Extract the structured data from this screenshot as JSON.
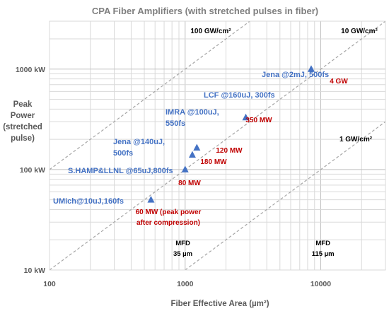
{
  "chart_data": {
    "type": "scatter",
    "title": "CPA Fiber Amplifiers (with stretched pulses in fiber)",
    "xlabel": "Fiber Effective Area (µm²)",
    "ylabel_lines": [
      "Peak",
      "Power",
      "(stretched",
      "pulse)"
    ],
    "x_scale": "log",
    "y_scale": "log",
    "xlim": [
      100,
      30000
    ],
    "ylim": [
      10,
      3000
    ],
    "x_ticks": [
      {
        "value": 100,
        "label": "100"
      },
      {
        "value": 1000,
        "label": "1000"
      },
      {
        "value": 10000,
        "label": "10000"
      }
    ],
    "y_ticks": [
      {
        "value": 10,
        "label": "10 kW"
      },
      {
        "value": 100,
        "label": "100 kW"
      },
      {
        "value": 1000,
        "label": "1000 kW"
      }
    ],
    "y_unit": "kW",
    "grid": true,
    "legend": "none",
    "marker_color": "#4472c4",
    "points": [
      {
        "x": 560,
        "y": 50,
        "label": "UMich@10uJ,160fs",
        "power": "60 MW (peak power after compression)"
      },
      {
        "x": 1000,
        "y": 100,
        "label": "S.HAMP&LLNL @65uJ,800fs",
        "power": "80 MW"
      },
      {
        "x": 1130,
        "y": 140,
        "label": "Jena @140uJ, 500fs",
        "power": "180 MW"
      },
      {
        "x": 1220,
        "y": 165,
        "label": "IMRA @100uJ, 550fs",
        "power": "120 MW"
      },
      {
        "x": 2800,
        "y": 330,
        "label": "LCF @160uJ, 300fs",
        "power": "350 MW"
      },
      {
        "x": 8500,
        "y": 1000,
        "label": "Jena @2mJ, 500fs",
        "power": "4 GW"
      }
    ],
    "reference_lines": [
      {
        "label": "100 GW/cm²",
        "slope": 1,
        "intercept_x": 100,
        "intercept_y": 100
      },
      {
        "label": "10 GW/cm²",
        "slope": 1,
        "intercept_x": 1000,
        "intercept_y": 100
      },
      {
        "label": "1 GW/cm²",
        "slope": 1,
        "intercept_x": 10000,
        "intercept_y": 100
      }
    ],
    "mfd_markers": [
      {
        "x": 962,
        "label_top": "MFD",
        "label_bottom": "35 µm"
      },
      {
        "x": 10387,
        "label_top": "MFD",
        "label_bottom": "115 µm"
      }
    ],
    "series_annotations": {
      "blue_lines": [
        [
          "UMich@10uJ,160fs"
        ],
        [
          "S.HAMP&LLNL @65uJ,800fs"
        ],
        [
          "Jena @140uJ,",
          "500fs"
        ],
        [
          "IMRA @100uJ,",
          "550fs"
        ],
        [
          "LCF @160uJ, 300fs"
        ],
        [
          "Jena @2mJ, 500fs"
        ]
      ],
      "red_lines": [
        [
          "60 MW (peak power",
          "after compression)"
        ],
        [
          "80 MW"
        ],
        [
          "180 MW"
        ],
        [
          "120 MW"
        ],
        [
          "350 MW"
        ],
        [
          "4 GW"
        ]
      ]
    }
  }
}
